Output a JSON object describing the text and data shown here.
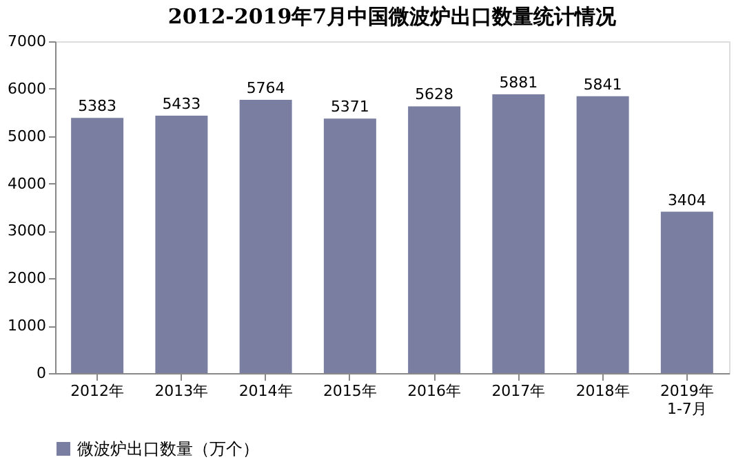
{
  "chart_data": {
    "type": "bar",
    "title": "2012-2019年7月中国微波炉出口数量统计情况",
    "categories": [
      "2012年",
      "2013年",
      "2014年",
      "2015年",
      "2016年",
      "2017年",
      "2018年",
      "2019年\n1-7月"
    ],
    "series": [
      {
        "name": "微波炉出口数量（万个）",
        "color": "#7a7fa2",
        "values": [
          5383,
          5433,
          5764,
          5371,
          5628,
          5881,
          5841,
          3404
        ]
      }
    ],
    "ylim": [
      0,
      7000
    ],
    "yticks": [
      0,
      1000,
      2000,
      3000,
      4000,
      5000,
      6000,
      7000
    ],
    "grid": false,
    "legend": "bottom",
    "data_labels": true
  }
}
